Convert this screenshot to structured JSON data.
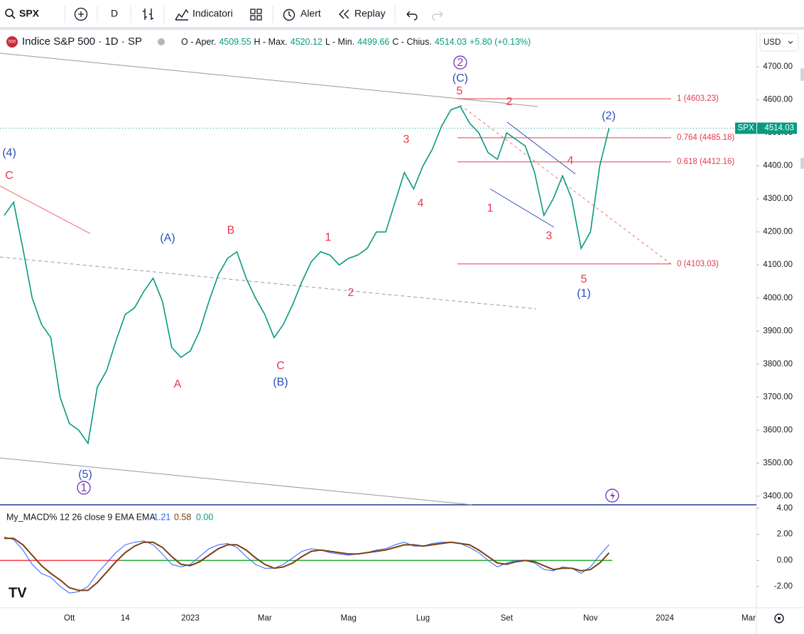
{
  "toolbar": {
    "symbol": "SPX",
    "interval": "D",
    "items": [
      "Indicatori",
      "Alert",
      "Replay"
    ]
  },
  "currency": "USD",
  "chart_data": [
    {
      "type": "line",
      "title": "Indice S&P 500 · 1D · SP",
      "ohlc": [
        {
          "label": "O - Aper.",
          "value": 4509.55
        },
        {
          "label": "H - Max.",
          "value": 4520.12
        },
        {
          "label": "L - Min.",
          "value": 4499.66
        },
        {
          "label": "C - Chius.",
          "value": 4514.03
        }
      ],
      "change": "+5.80 (+0.13%)",
      "categories": [
        null,
        null,
        null,
        null,
        null,
        null,
        null,
        "Ott",
        null,
        null,
        null,
        null,
        null,
        "14",
        null,
        null,
        null,
        null,
        null,
        null,
        "2023",
        null,
        null,
        null,
        null,
        null,
        null,
        null,
        "Mar",
        null,
        null,
        null,
        null,
        null,
        null,
        null,
        null,
        "Mag",
        null,
        null,
        null,
        null,
        null,
        null,
        null,
        "Lug",
        null,
        null,
        null,
        null,
        null,
        null,
        null,
        null,
        "Set",
        null,
        null,
        null,
        null,
        null,
        null,
        null,
        null,
        "Nov",
        null,
        null,
        null,
        null,
        null,
        null,
        null,
        "2024",
        null,
        null,
        null,
        null,
        null,
        null,
        null,
        null,
        "Mar"
      ],
      "series": [
        {
          "name": "SPX",
          "color": "#089981",
          "values": [
            4250,
            4290,
            4150,
            4000,
            3920,
            3880,
            3700,
            3620,
            3600,
            3560,
            3730,
            3780,
            3870,
            3950,
            3970,
            4020,
            4060,
            3990,
            3850,
            3820,
            3840,
            3900,
            3990,
            4070,
            4120,
            4140,
            4060,
            4000,
            3950,
            3880,
            3920,
            3980,
            4050,
            4110,
            4140,
            4130,
            4100,
            4120,
            4130,
            4150,
            4200,
            4200,
            4290,
            4380,
            4330,
            4400,
            4450,
            4520,
            4570,
            4580,
            4530,
            4500,
            4440,
            4420,
            4500,
            4480,
            4460,
            4380,
            4250,
            4300,
            4370,
            4300,
            4150,
            4200,
            4400,
            4514.03,
            null,
            null,
            null,
            null,
            null,
            null,
            null,
            null,
            null,
            null,
            null,
            null,
            null,
            null,
            null
          ]
        }
      ],
      "ylim": [
        3376,
        4812
      ],
      "yticks": [
        {
          "value": 3400,
          "label": "3400.00"
        },
        {
          "value": 3500,
          "label": "3500.00"
        },
        {
          "value": 3600,
          "label": "3600.00"
        },
        {
          "value": 3700,
          "label": "3700.00"
        },
        {
          "value": 3800,
          "label": "3800.00"
        },
        {
          "value": 3900,
          "label": "3900.00"
        },
        {
          "value": 4000,
          "label": "4000.00"
        },
        {
          "value": 4100,
          "label": "4100.00"
        },
        {
          "value": 4200,
          "label": "4200.00"
        },
        {
          "value": 4300,
          "label": "4300.00"
        },
        {
          "value": 4400,
          "label": "4400.00"
        },
        {
          "value": 4500,
          "label": "4500.00"
        },
        {
          "value": 4600,
          "label": "4600.00"
        },
        {
          "value": 4700,
          "label": "4700.00"
        }
      ],
      "fib": [
        {
          "label": "1 (4603.23)",
          "price": 4603.23
        },
        {
          "label": "0.764 (4485.18)",
          "price": 4485.18
        },
        {
          "label": "0.618 (4412.16)",
          "price": 4412.16
        },
        {
          "label": "0 (4103.03)",
          "price": 4103.03
        }
      ],
      "annotations": [
        {
          "text": "(4)",
          "color": "#2a4fb8"
        },
        {
          "text": "C",
          "color": "#e5394a"
        },
        {
          "text": "(5)",
          "color": "#2a4fb8"
        },
        {
          "text": "1",
          "color": "#7e3fb8",
          "shape": "circle"
        },
        {
          "text": "(A)",
          "color": "#2a4fb8"
        },
        {
          "text": "A",
          "color": "#e5394a"
        },
        {
          "text": "B",
          "color": "#e5394a"
        },
        {
          "text": "C",
          "color": "#e5394a"
        },
        {
          "text": "(B)",
          "color": "#2a4fb8"
        },
        {
          "text": "1",
          "color": "#e5394a"
        },
        {
          "text": "2",
          "color": "#e5394a"
        },
        {
          "text": "3",
          "color": "#e5394a"
        },
        {
          "text": "4",
          "color": "#e5394a"
        },
        {
          "text": "2",
          "color": "#7e3fb8",
          "shape": "circle"
        },
        {
          "text": "(C)",
          "color": "#2a4fb8"
        },
        {
          "text": "5",
          "color": "#e5394a"
        },
        {
          "text": "2",
          "color": "#e5394a"
        },
        {
          "text": "1",
          "color": "#e5394a"
        },
        {
          "text": "3",
          "color": "#e5394a"
        },
        {
          "text": "4",
          "color": "#e5394a"
        },
        {
          "text": "5",
          "color": "#e5394a"
        },
        {
          "text": "(1)",
          "color": "#2a4fb8"
        },
        {
          "text": "(2)",
          "color": "#2a4fb8"
        }
      ]
    },
    {
      "type": "line",
      "title": "My_MACD% 12 26 close 9 EMA EMA",
      "series": [
        {
          "color": "#2962ff",
          "values": [
            1.8,
            1.6,
            0.8,
            -0.3,
            -1.0,
            -1.3,
            -2.0,
            -2.5,
            -2.4,
            -2.0,
            -1.0,
            -0.2,
            0.6,
            1.2,
            1.4,
            1.5,
            1.2,
            0.5,
            -0.3,
            -0.5,
            -0.3,
            0.3,
            0.9,
            1.2,
            1.3,
            1.0,
            0.3,
            -0.3,
            -0.6,
            -0.6,
            -0.3,
            0.2,
            0.7,
            0.9,
            0.8,
            0.6,
            0.5,
            0.4,
            0.5,
            0.6,
            0.8,
            0.9,
            1.2,
            1.4,
            1.1,
            1.1,
            1.3,
            1.4,
            1.4,
            1.3,
            1.0,
            0.6,
            0.0,
            -0.5,
            -0.2,
            0.0,
            0.0,
            -0.2,
            -0.7,
            -0.8,
            -0.5,
            -0.6,
            -1.0,
            -0.5,
            0.4,
            1.21,
            null,
            null,
            null,
            null,
            null,
            null,
            null,
            null,
            null,
            null,
            null,
            null,
            null,
            null,
            null
          ]
        },
        {
          "color": "#7b3f12",
          "values": [
            1.7,
            1.7,
            1.2,
            0.4,
            -0.4,
            -1.0,
            -1.5,
            -2.1,
            -2.3,
            -2.3,
            -1.7,
            -0.9,
            -0.1,
            0.6,
            1.1,
            1.4,
            1.4,
            1.0,
            0.3,
            -0.3,
            -0.4,
            -0.1,
            0.4,
            0.9,
            1.2,
            1.2,
            0.8,
            0.2,
            -0.3,
            -0.6,
            -0.5,
            -0.2,
            0.3,
            0.7,
            0.8,
            0.7,
            0.6,
            0.5,
            0.5,
            0.6,
            0.7,
            0.8,
            1.0,
            1.2,
            1.2,
            1.1,
            1.2,
            1.3,
            1.4,
            1.3,
            1.2,
            0.8,
            0.3,
            -0.2,
            -0.3,
            -0.1,
            0.0,
            -0.1,
            -0.4,
            -0.7,
            -0.6,
            -0.6,
            -0.8,
            -0.7,
            -0.2,
            0.58,
            null,
            null,
            null,
            null,
            null,
            null,
            null,
            null,
            null,
            null,
            null,
            null,
            null,
            null,
            null
          ]
        }
      ],
      "histogram": {
        "value": 0,
        "label": "0.00"
      },
      "ylim": [
        -3.58,
        4.22
      ],
      "yticks": [
        {
          "value": 4,
          "label": "4.00"
        },
        {
          "value": 2,
          "label": "2.00"
        },
        {
          "value": 0,
          "label": "0.00"
        },
        {
          "value": -2,
          "label": "-2.00"
        }
      ]
    }
  ]
}
